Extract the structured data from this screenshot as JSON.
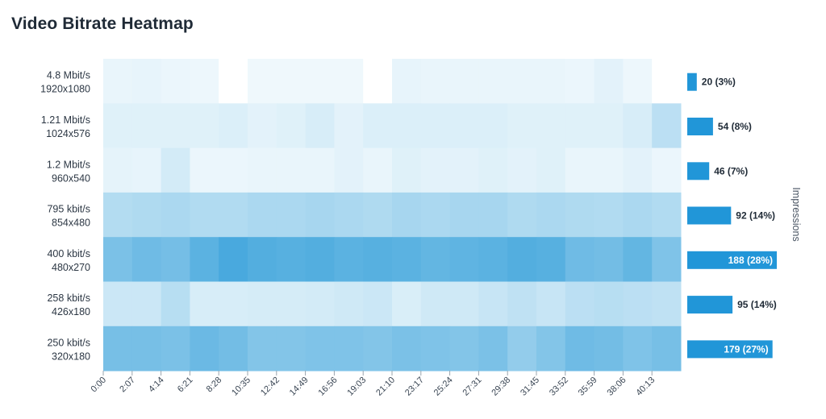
{
  "title": "Video Bitrate Heatmap",
  "chart_data": {
    "type": "heatmap",
    "title": "Video Bitrate Heatmap",
    "x_ticks": [
      "0:00",
      "2:07",
      "4:14",
      "6:21",
      "8:28",
      "10:35",
      "12:42",
      "14:49",
      "16:56",
      "19:03",
      "21:10",
      "23:17",
      "25:24",
      "27:31",
      "29:38",
      "31:45",
      "33:52",
      "35:59",
      "38:06",
      "40:13"
    ],
    "rows": [
      {
        "bitrate": "4.8 Mbit/s",
        "resolution": "1920x1080"
      },
      {
        "bitrate": "1.21 Mbit/s",
        "resolution": "1024x576"
      },
      {
        "bitrate": "1.2 Mbit/s",
        "resolution": "960x540"
      },
      {
        "bitrate": "795 kbit/s",
        "resolution": "854x480"
      },
      {
        "bitrate": "400 kbit/s",
        "resolution": "480x270"
      },
      {
        "bitrate": "258 kbit/s",
        "resolution": "426x180"
      },
      {
        "bitrate": "250 kbit/s",
        "resolution": "320x180"
      }
    ],
    "intensity": [
      [
        0.05,
        0.06,
        0.04,
        0.03,
        0.0,
        0.02,
        0.02,
        0.02,
        0.02,
        0.0,
        0.06,
        0.05,
        0.05,
        0.05,
        0.05,
        0.05,
        0.04,
        0.08,
        0.03,
        0.0
      ],
      [
        0.1,
        0.1,
        0.1,
        0.1,
        0.12,
        0.08,
        0.1,
        0.14,
        0.08,
        0.12,
        0.12,
        0.12,
        0.12,
        0.12,
        0.1,
        0.1,
        0.1,
        0.1,
        0.14,
        0.28
      ],
      [
        0.07,
        0.06,
        0.16,
        0.04,
        0.04,
        0.05,
        0.05,
        0.05,
        0.08,
        0.05,
        0.1,
        0.08,
        0.08,
        0.1,
        0.08,
        0.1,
        0.05,
        0.05,
        0.08,
        0.04
      ],
      [
        0.32,
        0.34,
        0.36,
        0.33,
        0.33,
        0.36,
        0.36,
        0.38,
        0.36,
        0.34,
        0.38,
        0.36,
        0.38,
        0.38,
        0.34,
        0.36,
        0.34,
        0.33,
        0.36,
        0.33
      ],
      [
        0.6,
        0.66,
        0.63,
        0.76,
        0.85,
        0.8,
        0.78,
        0.8,
        0.76,
        0.78,
        0.76,
        0.72,
        0.74,
        0.76,
        0.8,
        0.78,
        0.66,
        0.64,
        0.72,
        0.58
      ],
      [
        0.2,
        0.2,
        0.3,
        0.14,
        0.14,
        0.15,
        0.15,
        0.16,
        0.18,
        0.2,
        0.13,
        0.18,
        0.18,
        0.22,
        0.26,
        0.22,
        0.28,
        0.3,
        0.28,
        0.26
      ],
      [
        0.62,
        0.62,
        0.6,
        0.68,
        0.64,
        0.56,
        0.56,
        0.58,
        0.58,
        0.56,
        0.6,
        0.58,
        0.56,
        0.6,
        0.48,
        0.56,
        0.66,
        0.64,
        0.58,
        0.62
      ]
    ],
    "impressions": [
      {
        "value": 20,
        "label": "20 (3%)"
      },
      {
        "value": 54,
        "label": "54 (8%)"
      },
      {
        "value": 46,
        "label": "46 (7%)"
      },
      {
        "value": 92,
        "label": "92 (14%)"
      },
      {
        "value": 188,
        "label": "188 (28%)"
      },
      {
        "value": 95,
        "label": "95 (14%)"
      },
      {
        "value": 179,
        "label": "179 (27%)"
      }
    ],
    "side_axis_label": "Impressions",
    "colors": {
      "low": "#f3fafd",
      "high": "#2b9bd8",
      "bar": "#2196d8",
      "bar_text_inside": "#ffffff",
      "bar_text_outside": "#1f2a36"
    }
  }
}
